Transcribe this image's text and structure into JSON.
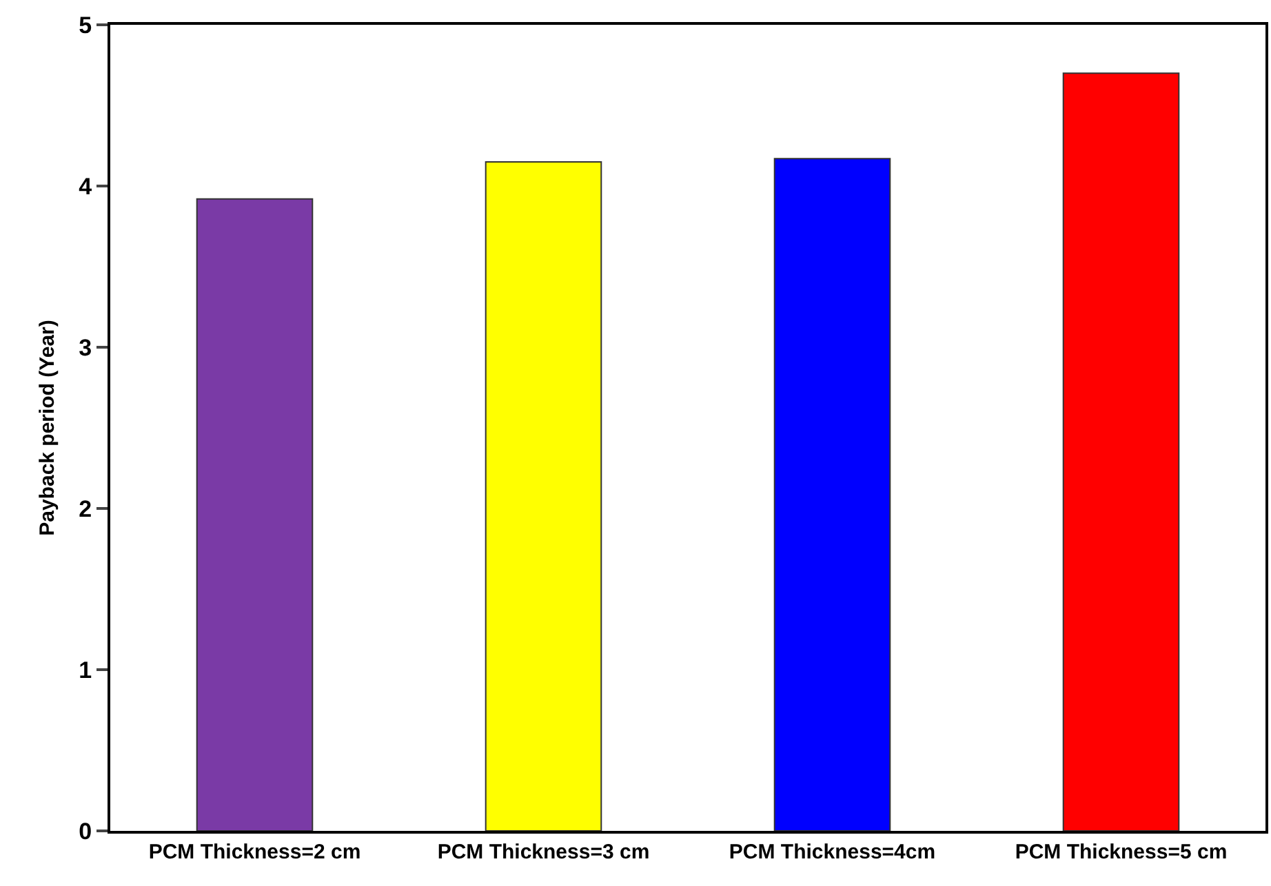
{
  "chart_data": {
    "type": "bar",
    "ylabel": "Payback period (Year)",
    "categories": [
      "PCM Thickness=2 cm",
      "PCM Thickness=3 cm",
      "PCM Thickness=4cm",
      "PCM Thickness=5 cm"
    ],
    "values": [
      3.92,
      4.15,
      4.17,
      4.7
    ],
    "colors": [
      "#7a3aa6",
      "#ffff00",
      "#0000ff",
      "#ff0000"
    ],
    "ylim": [
      0,
      5
    ],
    "yticks": [
      0,
      1,
      2,
      3,
      4,
      5
    ],
    "grid": false
  }
}
